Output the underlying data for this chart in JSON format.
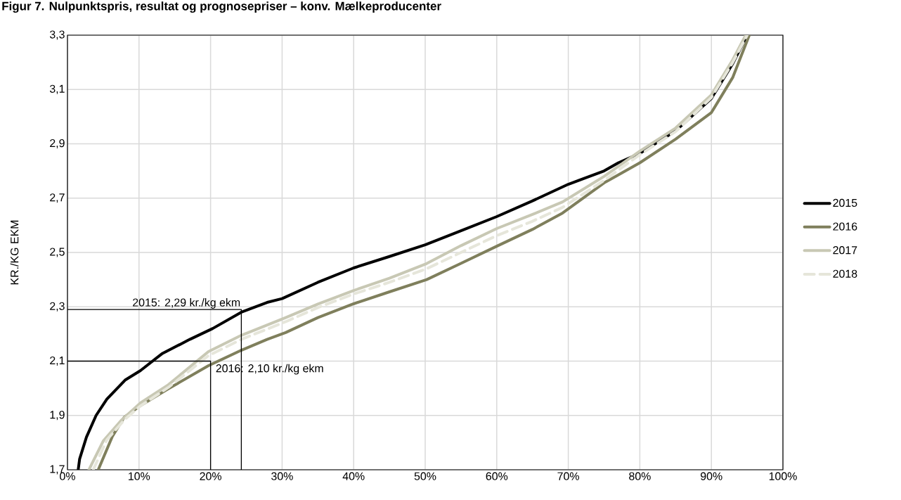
{
  "chart_data": {
    "type": "line",
    "title": "Figur 7. Nulpunktspris, resultat og prognosepriser – konv. Mælkeproducenter",
    "ylabel": "KR./KG EKM",
    "xlim": [
      0,
      100
    ],
    "ylim": [
      1.7,
      3.3
    ],
    "xticks": [
      {
        "value": 0,
        "label": "0%"
      },
      {
        "value": 10,
        "label": "10%"
      },
      {
        "value": 20,
        "label": "20%"
      },
      {
        "value": 30,
        "label": "30%"
      },
      {
        "value": 40,
        "label": "40%"
      },
      {
        "value": 50,
        "label": "50%"
      },
      {
        "value": 60,
        "label": "60%"
      },
      {
        "value": 70,
        "label": "70%"
      },
      {
        "value": 80,
        "label": "80%"
      },
      {
        "value": 90,
        "label": "90%"
      },
      {
        "value": 100,
        "label": "100%"
      }
    ],
    "yticks": [
      {
        "value": 1.7,
        "label": "1,7"
      },
      {
        "value": 1.9,
        "label": "1,9"
      },
      {
        "value": 2.1,
        "label": "2,1"
      },
      {
        "value": 2.3,
        "label": "2,3"
      },
      {
        "value": 2.5,
        "label": "2,5"
      },
      {
        "value": 2.7,
        "label": "2,7"
      },
      {
        "value": 2.9,
        "label": "2,9"
      },
      {
        "value": 3.1,
        "label": "3,1"
      },
      {
        "value": 3.3,
        "label": "3,3"
      }
    ],
    "grid": true,
    "legend": "right",
    "marker": "none",
    "series": [
      {
        "name": "2015",
        "color": "#000000",
        "line_style": "solid",
        "x": [
          1.5,
          1.7,
          2.65,
          4,
          5.5,
          8.05,
          10.2,
          13.2,
          17.1,
          20.3,
          24.3,
          27.9,
          30,
          35,
          40,
          45,
          50,
          55,
          60,
          65,
          70,
          75,
          77,
          80,
          85,
          90,
          93,
          95
        ],
        "values": [
          1.7,
          1.74,
          1.82,
          1.9,
          1.96,
          2.03,
          2.065,
          2.127,
          2.18,
          2.22,
          2.28,
          2.316,
          2.33,
          2.39,
          2.443,
          2.485,
          2.528,
          2.58,
          2.632,
          2.69,
          2.751,
          2.8,
          2.83,
          2.865,
          2.948,
          3.067,
          3.196,
          3.3
        ]
      },
      {
        "name": "2016",
        "color": "#7f7f5c",
        "line_style": "solid",
        "x": [
          4.3,
          6.3,
          7.95,
          10.2,
          14.1,
          19.7,
          24.3,
          27.9,
          30.5,
          35,
          40,
          45,
          50.2,
          55,
          60,
          65,
          69.2,
          75,
          80,
          85,
          90,
          93,
          95.3
        ],
        "values": [
          1.7,
          1.824,
          1.894,
          1.936,
          1.998,
          2.083,
          2.14,
          2.18,
          2.205,
          2.26,
          2.311,
          2.355,
          2.4,
          2.46,
          2.523,
          2.585,
          2.645,
          2.756,
          2.83,
          2.917,
          3.015,
          3.145,
          3.3
        ]
      },
      {
        "name": "2017",
        "color": "#c8c8b4",
        "line_style": "solid",
        "x": [
          3.0,
          5.0,
          7.6,
          10.2,
          14.1,
          19.7,
          24.3,
          30.5,
          35,
          40,
          45,
          50.2,
          55,
          60,
          65,
          69.2,
          75,
          80,
          85,
          90,
          93,
          94.8
        ],
        "values": [
          1.7,
          1.806,
          1.884,
          1.946,
          2.013,
          2.135,
          2.195,
          2.26,
          2.31,
          2.36,
          2.405,
          2.459,
          2.525,
          2.588,
          2.64,
          2.686,
          2.78,
          2.873,
          2.958,
          3.08,
          3.21,
          3.3
        ]
      },
      {
        "name": "2018",
        "color": "#e6e6da",
        "line_style": "dashed",
        "x": [
          3.6,
          5.5,
          8.0,
          10.2,
          14.1,
          19.7,
          24.3,
          30.5,
          35,
          40,
          45,
          50.2,
          55,
          60,
          65,
          69.2,
          75,
          80,
          85,
          90,
          93,
          95
        ],
        "values": [
          1.7,
          1.81,
          1.885,
          1.935,
          2.003,
          2.12,
          2.18,
          2.245,
          2.297,
          2.347,
          2.39,
          2.44,
          2.5,
          2.562,
          2.615,
          2.666,
          2.765,
          2.86,
          2.945,
          3.07,
          3.2,
          3.3
        ]
      },
      {
        "color": "#000000",
        "line_style": "solid",
        "x": [
          0,
          24.3,
          24.3
        ],
        "values": [
          2.29,
          2.29,
          1.7
        ]
      },
      {
        "color": "#000000",
        "line_style": "solid",
        "x": [
          0,
          20,
          20
        ],
        "values": [
          2.1,
          2.1,
          1.7
        ]
      }
    ],
    "annotations": [
      {
        "text": "2015: 2,29 kr./kg ekm",
        "x": 24.3,
        "y": 2.29
      },
      {
        "text": "2016: 2,10 kr./kg ekm",
        "x": 20,
        "y": 2.1
      }
    ]
  }
}
